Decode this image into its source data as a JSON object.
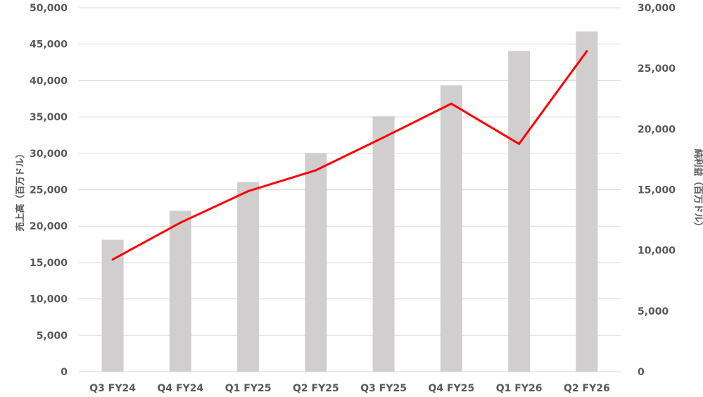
{
  "chart_data": {
    "type": "bar",
    "categories": [
      "Q3 FY24",
      "Q4 FY24",
      "Q1 FY25",
      "Q2 FY25",
      "Q3 FY25",
      "Q4 FY25",
      "Q1 FY26",
      "Q2 FY26"
    ],
    "series": [
      {
        "name": "",
        "type": "bar",
        "axis": "left",
        "values": [
          18120,
          22103,
          26044,
          30040,
          35082,
          39331,
          44062,
          46743
        ]
      },
      {
        "name": "",
        "type": "line",
        "axis": "right",
        "values": [
          9243,
          12285,
          14881,
          16599,
          19309,
          22091,
          18776,
          26422
        ]
      }
    ],
    "ylabel": "売上高（百万ドル）",
    "y2label": "純利益（百万ドル）",
    "ylim": [
      0,
      50000
    ],
    "y2lim": [
      0,
      30000
    ],
    "yticks": [
      "0",
      "5,000",
      "10,000",
      "15,000",
      "20,000",
      "25,000",
      "30,000",
      "35,000",
      "40,000",
      "45,000",
      "50,000"
    ],
    "y2ticks": [
      "0",
      "5,000",
      "10,000",
      "15,000",
      "20,000",
      "25,000",
      "30,000"
    ],
    "grid": true,
    "colors": {
      "bar": "#d0cece",
      "line": "#ff0000",
      "text": "#595959",
      "grid": "#d9d9d9"
    }
  }
}
